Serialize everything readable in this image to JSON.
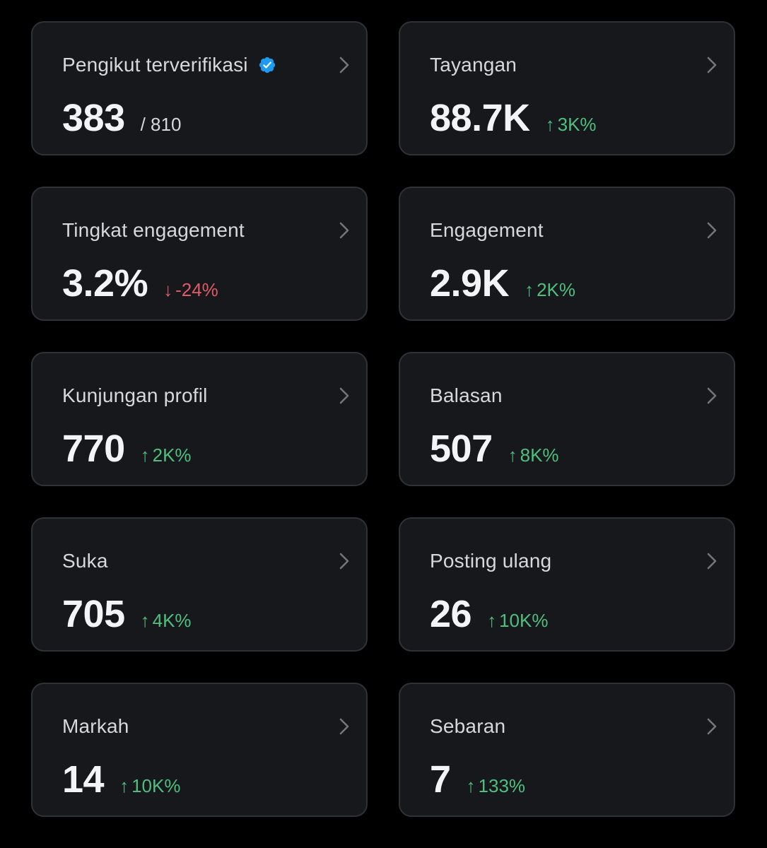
{
  "colors": {
    "background": "#000000",
    "card": "#16181c",
    "border": "#2f3336",
    "up": "#4fbf7e",
    "down": "#e05a67",
    "verified": "#1d9bf0"
  },
  "cards": [
    {
      "label": "Pengikut terverifikasi",
      "value": "383",
      "sub": "/ 810",
      "verified": true
    },
    {
      "label": "Tayangan",
      "value": "88.7K",
      "change": "3K%",
      "direction": "up",
      "arrow": "↑"
    },
    {
      "label": "Tingkat engagement",
      "value": "3.2%",
      "change": "-24%",
      "direction": "down",
      "arrow": "↓"
    },
    {
      "label": "Engagement",
      "value": "2.9K",
      "change": "2K%",
      "direction": "up",
      "arrow": "↑"
    },
    {
      "label": "Kunjungan profil",
      "value": "770",
      "change": "2K%",
      "direction": "up",
      "arrow": "↑"
    },
    {
      "label": "Balasan",
      "value": "507",
      "change": "8K%",
      "direction": "up",
      "arrow": "↑"
    },
    {
      "label": "Suka",
      "value": "705",
      "change": "4K%",
      "direction": "up",
      "arrow": "↑"
    },
    {
      "label": "Posting ulang",
      "value": "26",
      "change": "10K%",
      "direction": "up",
      "arrow": "↑"
    },
    {
      "label": "Markah",
      "value": "14",
      "change": "10K%",
      "direction": "up",
      "arrow": "↑"
    },
    {
      "label": "Sebaran",
      "value": "7",
      "change": "133%",
      "direction": "up",
      "arrow": "↑"
    }
  ]
}
